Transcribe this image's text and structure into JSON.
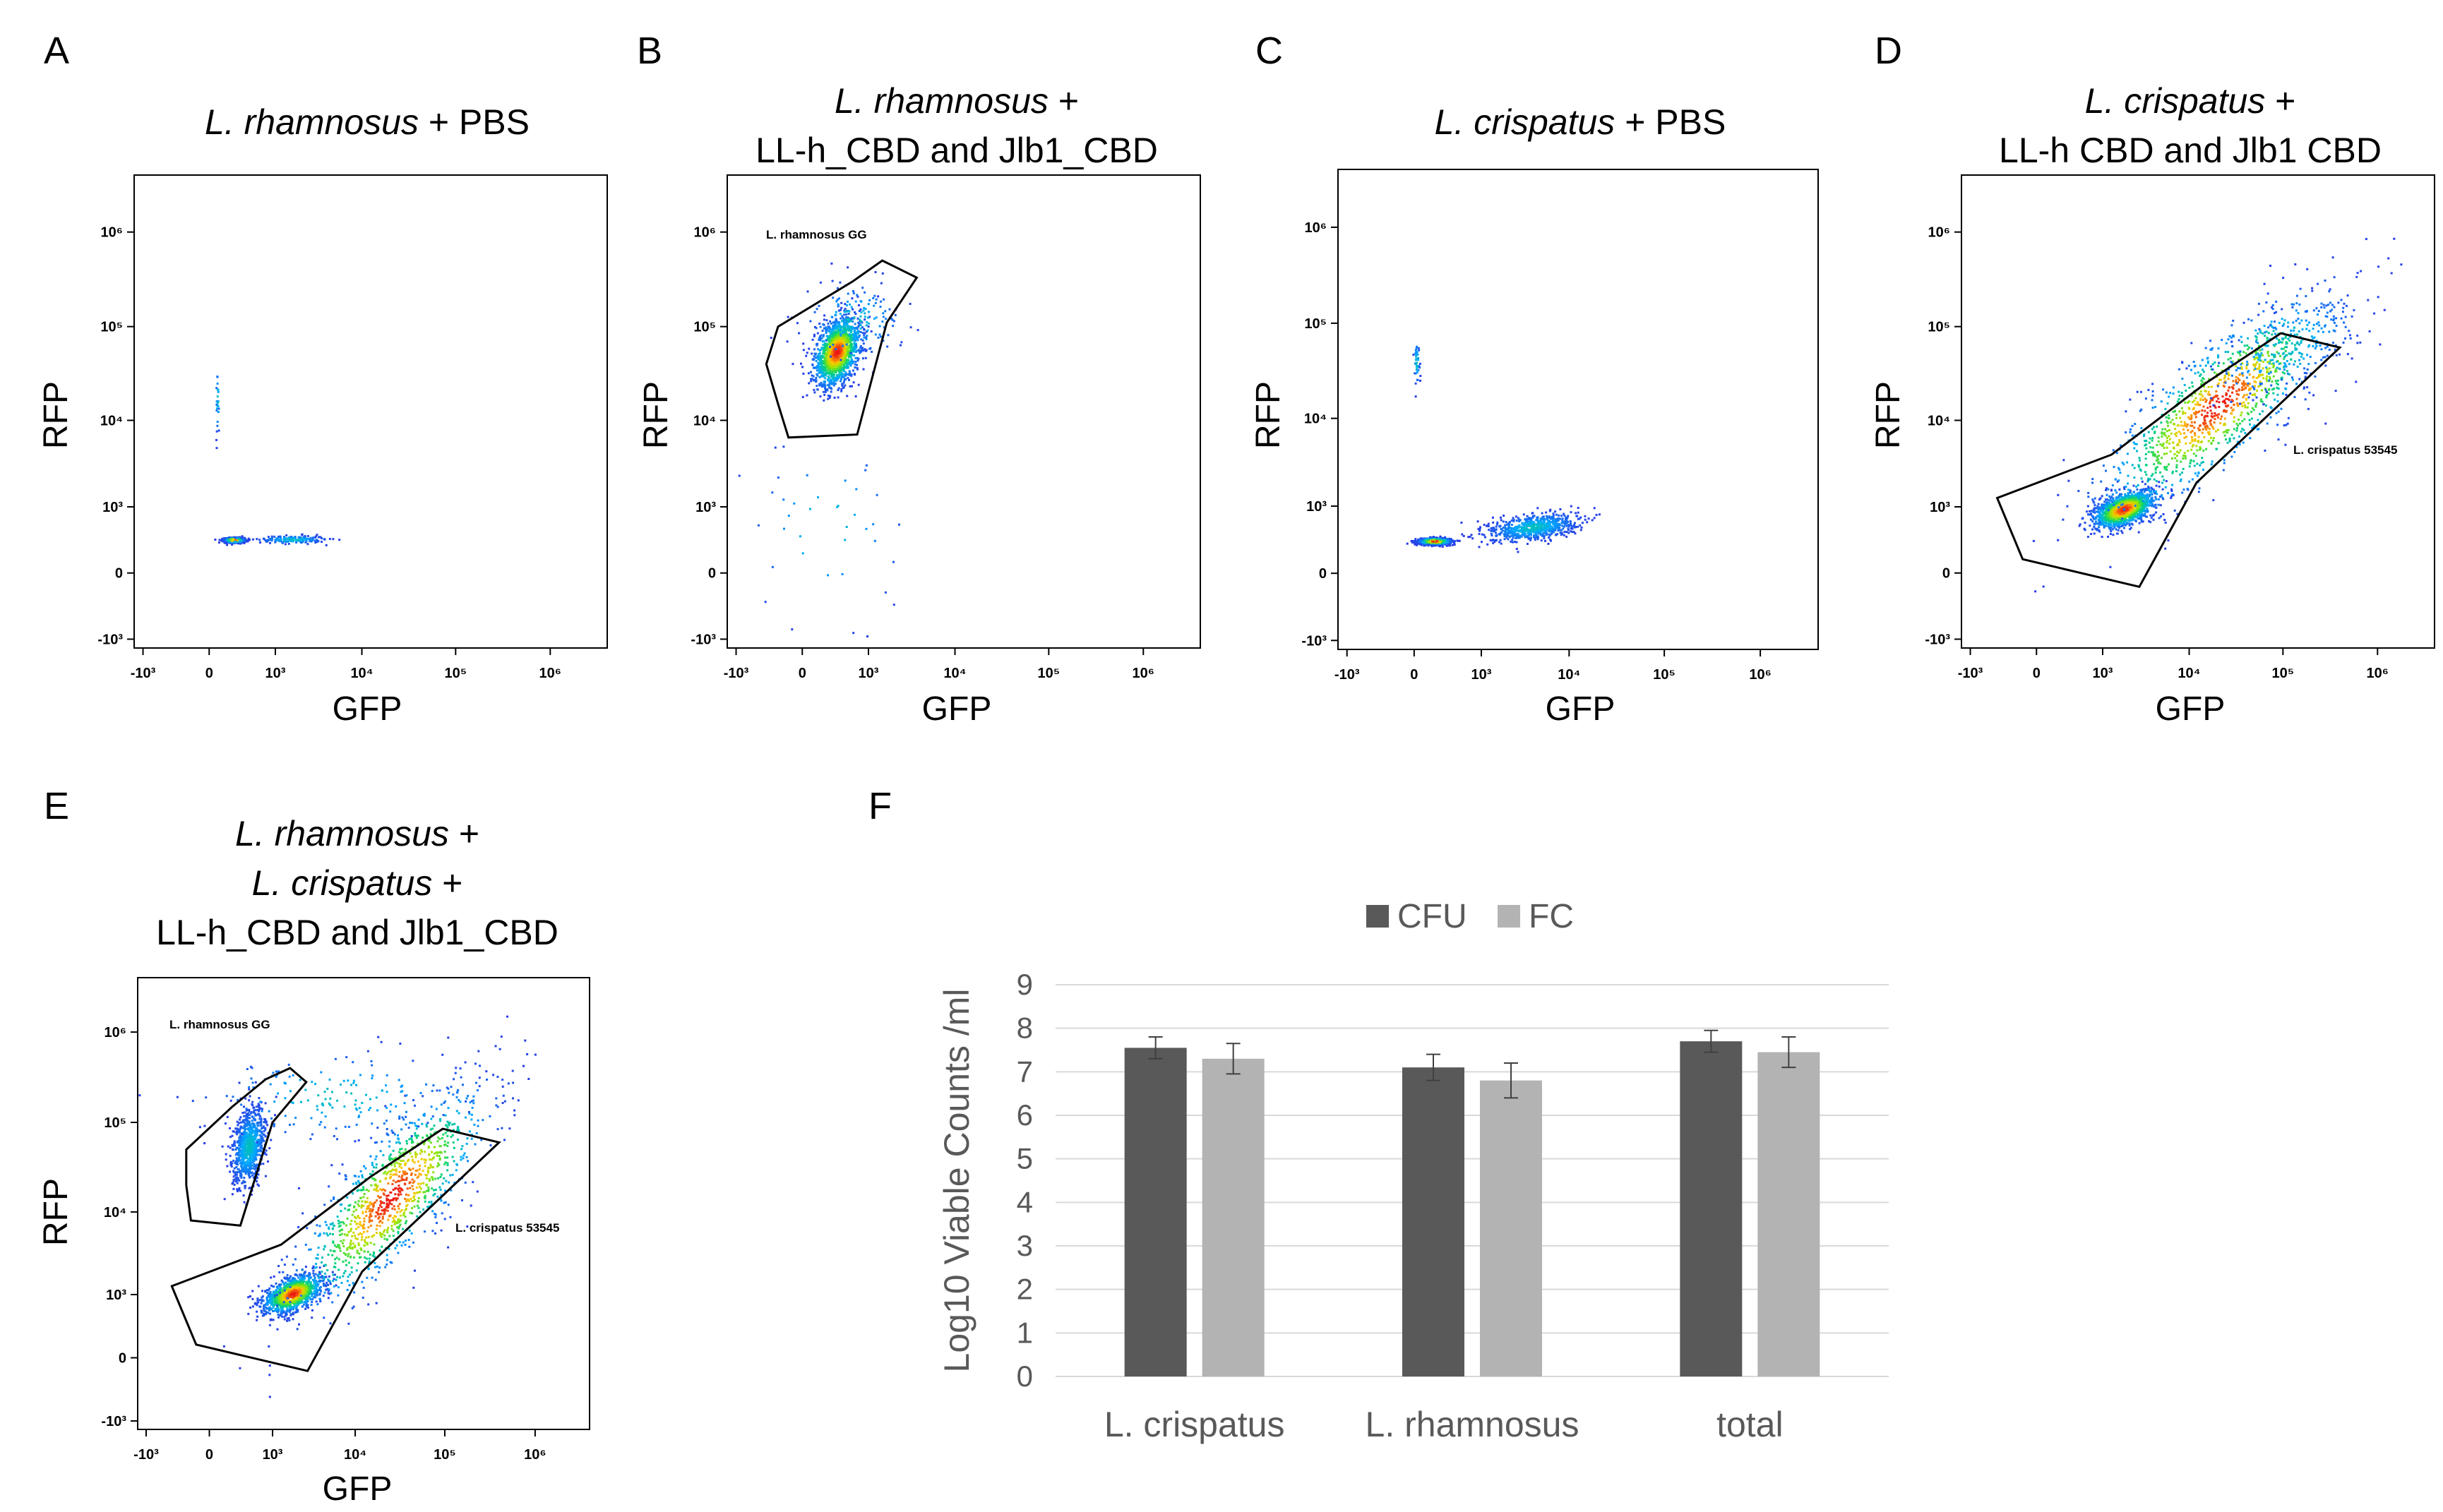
{
  "panels": [
    {
      "id": "A",
      "letter": "A",
      "title_lines": [
        [
          {
            "t": "L. rhamnosus",
            "i": true
          },
          {
            "t": " + PBS",
            "i": false
          }
        ]
      ],
      "xlabel": "GFP",
      "ylabel": "RFP",
      "clusters": [
        {
          "gx": 200,
          "gy": 320,
          "sx": 55,
          "sy": 16,
          "n": 1400,
          "rot": 0
        },
        {
          "gx": 1600,
          "gy": 328,
          "sx": 900,
          "sy": 28,
          "n": 180,
          "rot": 0
        },
        {
          "gx": 50,
          "gy": 16500,
          "sx": 6,
          "sy": 9000,
          "n": 25,
          "rot": 0
        }
      ],
      "gates": []
    },
    {
      "id": "B",
      "letter": "B",
      "title_lines": [
        [
          {
            "t": "L. rhamnosus",
            "i": true
          },
          {
            "t": " +",
            "i": false
          }
        ],
        [
          {
            "t": "LL-h_CBD  and Jlb1_CBD",
            "i": false
          }
        ]
      ],
      "xlabel": "GFP",
      "ylabel": "RFP",
      "clusters": [
        {
          "gx": 320,
          "gy": 55000,
          "sx": 180,
          "sy": 28000,
          "n": 1500,
          "rot": 0.35
        },
        {
          "gx": 600,
          "gy": 120000,
          "sx": 700,
          "sy": 70000,
          "n": 160,
          "rot": 0
        },
        {
          "gx": 200,
          "gy": 500,
          "sx": 700,
          "sy": 1500,
          "n": 40,
          "rot": 0
        }
      ],
      "gates": [
        {
          "label": "L. rhamnosus GG",
          "pts": [
            [
              -200,
              15000
            ],
            [
              -350,
              40000
            ],
            [
              -200,
              100000
            ],
            [
              600,
              300000
            ],
            [
              1500,
              500000
            ],
            [
              3800,
              330000
            ],
            [
              1700,
              110000
            ],
            [
              700,
              7000
            ],
            [
              -100,
              6500
            ]
          ]
        }
      ]
    },
    {
      "id": "C",
      "letter": "C",
      "title_lines": [
        [
          {
            "t": "L. crispatus",
            "i": true
          },
          {
            "t": " + PBS",
            "i": false
          }
        ]
      ],
      "xlabel": "GFP",
      "ylabel": "RFP",
      "clusters": [
        {
          "gx": 150,
          "gy": 300,
          "sx": 80,
          "sy": 20,
          "n": 1400,
          "rot": 0
        },
        {
          "gx": 4000,
          "gy": 520,
          "sx": 3000,
          "sy": 140,
          "n": 700,
          "rot": 0.4
        },
        {
          "gx": 10,
          "gy": 40000,
          "sx": 10,
          "sy": 12000,
          "n": 40,
          "rot": 0
        }
      ],
      "gates": []
    },
    {
      "id": "D",
      "letter": "D",
      "title_lines": [
        [
          {
            "t": "L. crispatus",
            "i": true
          },
          {
            "t": " +",
            "i": false
          }
        ],
        [
          {
            "t": "LL-h  CBD and Jlb1  CBD",
            "i": false
          }
        ]
      ],
      "xlabel": "GFP",
      "ylabel": "RFP",
      "clusters": [
        {
          "gx": 1800,
          "gy": 950,
          "sx": 900,
          "sy": 300,
          "n": 1300,
          "rot": 0.5
        },
        {
          "gx": 20000,
          "gy": 15000,
          "sx": 60000,
          "sy": 40000,
          "n": 1100,
          "rot": 0.8
        },
        {
          "gx": 100000,
          "gy": 60000,
          "sx": 150000,
          "sy": 50000,
          "n": 250,
          "rot": 0.6
        }
      ],
      "gates": [
        {
          "label": "L. crispatus 53545",
          "pts": [
            [
              -400,
              1300
            ],
            [
              -100,
              100
            ],
            [
              2800,
              -100
            ],
            [
              12000,
              2000
            ],
            [
              400000,
              60000
            ],
            [
              95000,
              85000
            ],
            [
              15000,
              25000
            ],
            [
              1300,
              4200
            ]
          ]
        }
      ]
    },
    {
      "id": "E",
      "letter": "E",
      "title_lines": [
        [
          {
            "t": "L. rhamnosus",
            "i": true
          },
          {
            "t": " +",
            "i": false
          }
        ],
        [
          {
            "t": "L. crispatus",
            "i": true
          },
          {
            "t": " +",
            "i": false
          }
        ],
        [
          {
            "t": "LL-h_CBD  and Jlb1_CBD",
            "i": false
          }
        ]
      ],
      "xlabel": "GFP",
      "ylabel": "RFP",
      "clusters": [
        {
          "gx": 420,
          "gy": 55000,
          "sx": 160,
          "sy": 35000,
          "n": 850,
          "rot": 0.3
        },
        {
          "gx": 1800,
          "gy": 1050,
          "sx": 900,
          "sy": 350,
          "n": 1200,
          "rot": 0.5
        },
        {
          "gx": 25000,
          "gy": 15000,
          "sx": 60000,
          "sy": 45000,
          "n": 1100,
          "rot": 0.8
        },
        {
          "gx": 6000,
          "gy": 200000,
          "sx": 30000,
          "sy": 150000,
          "n": 180,
          "rot": 0
        }
      ],
      "gates": [
        {
          "label": "L. rhamnosus GG",
          "pts": [
            [
              -150,
              8000
            ],
            [
              -200,
              20000
            ],
            [
              -200,
              50000
            ],
            [
              200,
              150000
            ],
            [
              800,
              300000
            ],
            [
              1700,
              400000
            ],
            [
              2700,
              280000
            ],
            [
              1000,
              100000
            ],
            [
              300,
              7000
            ]
          ]
        },
        {
          "label": "L. crispatus 53545",
          "pts": [
            [
              -400,
              1300
            ],
            [
              -100,
              100
            ],
            [
              2800,
              -100
            ],
            [
              12000,
              2000
            ],
            [
              400000,
              60000
            ],
            [
              95000,
              85000
            ],
            [
              15000,
              25000
            ],
            [
              1300,
              4200
            ]
          ]
        }
      ]
    }
  ],
  "flow_axis": {
    "x_ticks": [
      "-10³",
      "0",
      "10³",
      "10⁴",
      "10⁵",
      "10⁶"
    ],
    "y_ticks": [
      "10⁶",
      "10⁵",
      "10⁴",
      "10³",
      "0",
      "-10³"
    ]
  },
  "bar_panel": {
    "letter": "F"
  },
  "chart_data": [
    {
      "type": "scatter",
      "panel": "A",
      "title": "L. rhamnosus + PBS",
      "xlabel": "GFP",
      "ylabel": "RFP",
      "scale": "biexponential",
      "xlim": [
        -1000,
        4000000
      ],
      "ylim": [
        -1000,
        4000000
      ]
    },
    {
      "type": "scatter",
      "panel": "B",
      "title": "L. rhamnosus + LL-h_CBD and Jlb1_CBD",
      "xlabel": "GFP",
      "ylabel": "RFP",
      "gate": "L. rhamnosus GG"
    },
    {
      "type": "scatter",
      "panel": "C",
      "title": "L. crispatus + PBS",
      "xlabel": "GFP",
      "ylabel": "RFP"
    },
    {
      "type": "scatter",
      "panel": "D",
      "title": "L. crispatus + LL-h CBD and Jlb1 CBD",
      "xlabel": "GFP",
      "ylabel": "RFP",
      "gate": "L. crispatus 53545"
    },
    {
      "type": "scatter",
      "panel": "E",
      "title": "L. rhamnosus + L. crispatus + LL-h_CBD and Jlb1_CBD",
      "xlabel": "GFP",
      "ylabel": "RFP",
      "gates": [
        "L. rhamnosus GG",
        "L. crispatus 53545"
      ]
    },
    {
      "type": "bar",
      "panel": "F",
      "categories": [
        "L. crispatus",
        "L. rhamnosus",
        "total"
      ],
      "series": [
        {
          "name": "CFU",
          "color": "#595959",
          "values": [
            7.55,
            7.1,
            7.7
          ],
          "errors": [
            0.25,
            0.3,
            0.25
          ]
        },
        {
          "name": "FC",
          "color": "#b3b3b3",
          "values": [
            7.3,
            6.8,
            7.45
          ],
          "errors": [
            0.35,
            0.4,
            0.35
          ]
        }
      ],
      "ylabel": "Log10 Viable Counts /ml",
      "ylim": [
        0,
        9
      ],
      "yticks": [
        "0",
        "1",
        "2",
        "3",
        "4",
        "5",
        "6",
        "7",
        "8",
        "9"
      ],
      "legend": "top-center",
      "grid": true
    }
  ]
}
